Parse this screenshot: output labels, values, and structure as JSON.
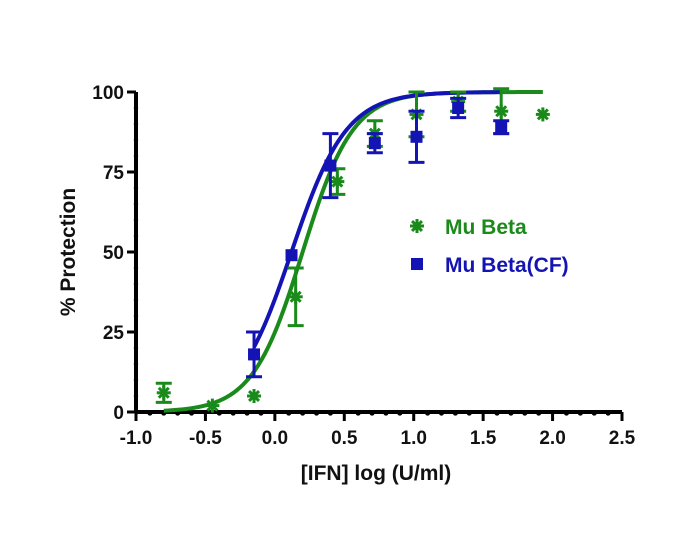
{
  "chart_data": {
    "type": "scatter",
    "xlabel": "[IFN] log (U/ml)",
    "ylabel": "% Protection",
    "xlim": [
      -1.0,
      2.5
    ],
    "ylim": [
      0,
      100
    ],
    "x_ticks": [
      "-1.0",
      "-0.5",
      "0.0",
      "0.5",
      "1.0",
      "1.5",
      "2.0",
      "2.5"
    ],
    "y_ticks": [
      "0",
      "25",
      "50",
      "75",
      "100"
    ],
    "grid": false,
    "legend_position": "right-center",
    "series": [
      {
        "name": "Mu Beta",
        "color": "#1a8a1a",
        "marker": "asterisk",
        "points": [
          {
            "x": -0.8,
            "y": 6,
            "err": 3
          },
          {
            "x": -0.45,
            "y": 2,
            "err": 0
          },
          {
            "x": -0.15,
            "y": 5,
            "err": 0
          },
          {
            "x": 0.15,
            "y": 36,
            "err": 9
          },
          {
            "x": 0.45,
            "y": 72,
            "err": 4
          },
          {
            "x": 0.72,
            "y": 87,
            "err": 4
          },
          {
            "x": 1.02,
            "y": 93,
            "err": 7
          },
          {
            "x": 1.32,
            "y": 97,
            "err": 3
          },
          {
            "x": 1.63,
            "y": 94,
            "err": 7
          },
          {
            "x": 1.93,
            "y": 93,
            "err": 0
          }
        ],
        "fit": {
          "bottom": 0,
          "top": 100,
          "logEC50": 0.2,
          "hill": 2.4
        }
      },
      {
        "name": "Mu Beta(CF)",
        "color": "#1414b4",
        "marker": "square",
        "points": [
          {
            "x": -0.15,
            "y": 18,
            "err": 7
          },
          {
            "x": 0.12,
            "y": 49,
            "err": 0
          },
          {
            "x": 0.4,
            "y": 77,
            "err": 10
          },
          {
            "x": 0.72,
            "y": 84,
            "err": 3
          },
          {
            "x": 1.02,
            "y": 86,
            "err": 8
          },
          {
            "x": 1.32,
            "y": 95,
            "err": 3
          },
          {
            "x": 1.63,
            "y": 89,
            "err": 2
          }
        ],
        "fit": {
          "bottom": 0,
          "top": 100,
          "logEC50": 0.12,
          "hill": 2.2
        }
      }
    ]
  }
}
